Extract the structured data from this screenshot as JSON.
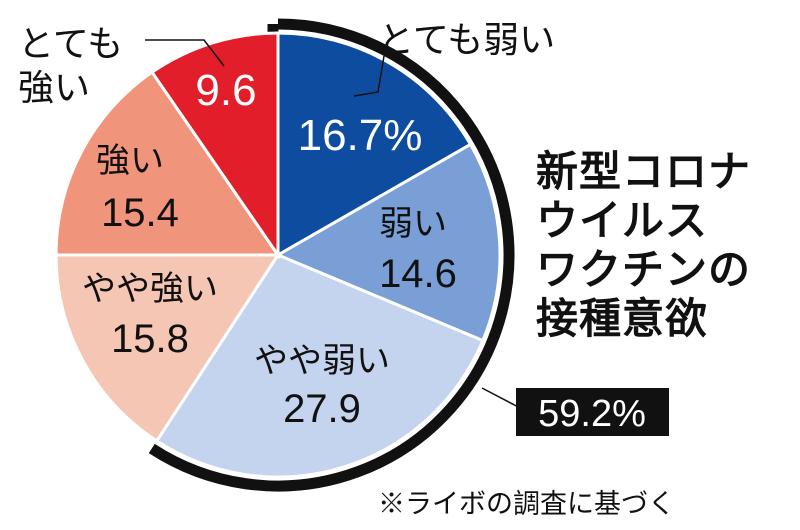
{
  "chart_data": {
    "type": "pie",
    "title_lines": [
      "新型コロナ",
      "ウイルス",
      "ワクチンの",
      "接種意欲"
    ],
    "slices": [
      {
        "label": "とても弱い",
        "value": 16.7,
        "value_text": "16.7%",
        "color": "#0d4c9e"
      },
      {
        "label": "弱い",
        "value": 14.6,
        "value_text": "14.6",
        "color": "#7a9fd6"
      },
      {
        "label": "やや弱い",
        "value": 27.9,
        "value_text": "27.9",
        "color": "#c4d3ee"
      },
      {
        "label": "やや強い",
        "value": 15.8,
        "value_text": "15.8",
        "color": "#f6c6b4"
      },
      {
        "label": "強い",
        "value": 15.4,
        "value_text": "15.4",
        "color": "#f0957b"
      },
      {
        "label": "とても強い",
        "value": 9.6,
        "value_text": "9.6",
        "color": "#e21e2a"
      }
    ],
    "weak_total": {
      "value": 59.2,
      "text": "59.2%"
    },
    "note": "※ライボの調査に基づく"
  }
}
